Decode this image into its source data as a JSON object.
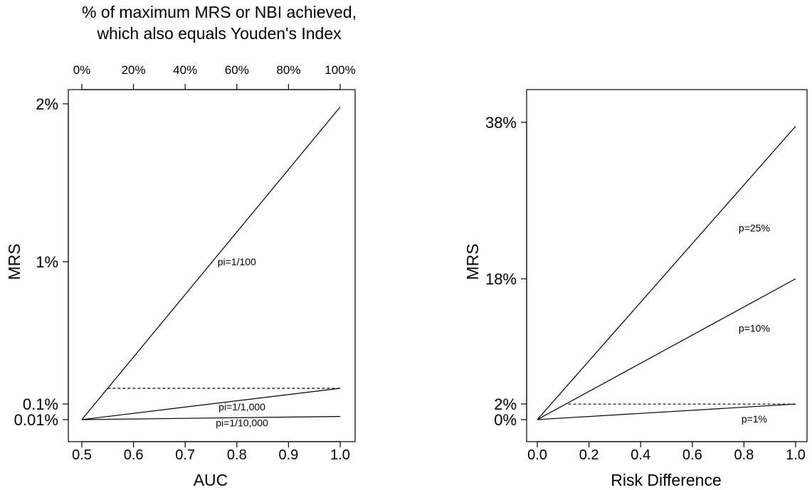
{
  "chart_data": [
    {
      "type": "line",
      "title": "% of maximum MRS or NBI achieved,\nwhich also equals Youden's Index",
      "title_lines": [
        "% of maximum MRS or NBI achieved,",
        "which also equals Youden's Index"
      ],
      "xlabel": "AUC",
      "ylabel": "MRS",
      "xlim": [
        0.5,
        1.0
      ],
      "ylim": [
        0,
        2
      ],
      "x_ticks": [
        0.5,
        0.6,
        0.7,
        0.8,
        0.9,
        1.0
      ],
      "x_tick_labels": [
        "0.5",
        "0.6",
        "0.7",
        "0.8",
        "0.9",
        "1.0"
      ],
      "y_ticks": [
        0.01,
        0.1,
        1,
        2
      ],
      "y_tick_labels": [
        "0.01%",
        "0.1%",
        "1%",
        "2%"
      ],
      "top_axis": {
        "ticks": [
          0.5,
          0.6,
          0.7,
          0.8,
          0.9,
          1.0
        ],
        "labels": [
          "0%",
          "20%",
          "40%",
          "60%",
          "80%",
          "100%"
        ]
      },
      "series": [
        {
          "name": "pi=1/100",
          "x": [
            0.5,
            1.0
          ],
          "y": [
            0,
            1.98
          ],
          "style": "solid",
          "label_at": [
            0.8,
            1.0
          ]
        },
        {
          "name": "pi=1/1,000",
          "x": [
            0.5,
            1.0
          ],
          "y": [
            0,
            0.198
          ],
          "style": "solid",
          "label_at": [
            0.81,
            0.08
          ]
        },
        {
          "name": "pi=1/10,000",
          "x": [
            0.5,
            1.0
          ],
          "y": [
            0,
            0.0198
          ],
          "style": "solid",
          "label_at": [
            0.81,
            -0.02
          ]
        },
        {
          "name": "",
          "x": [
            0.55,
            1.0
          ],
          "y": [
            0.198,
            0.198
          ],
          "style": "dashed"
        }
      ]
    },
    {
      "type": "line",
      "title": "",
      "xlabel": "Risk Difference",
      "ylabel": "MRS",
      "xlim": [
        0.0,
        1.0
      ],
      "ylim": [
        0,
        38
      ],
      "x_ticks": [
        0.0,
        0.2,
        0.4,
        0.6,
        0.8,
        1.0
      ],
      "x_tick_labels": [
        "0.0",
        "0.2",
        "0.4",
        "0.6",
        "0.8",
        "1.0"
      ],
      "y_ticks": [
        0,
        2,
        18,
        38
      ],
      "y_tick_labels": [
        "0%",
        "2%",
        "18%",
        "38%"
      ],
      "series": [
        {
          "name": "p=25%",
          "x": [
            0.0,
            1.0
          ],
          "y": [
            0,
            37.5
          ],
          "style": "solid",
          "label_at": [
            0.84,
            24.5
          ]
        },
        {
          "name": "p=10%",
          "x": [
            0.0,
            1.0
          ],
          "y": [
            0,
            18.0
          ],
          "style": "solid",
          "label_at": [
            0.84,
            11.7
          ]
        },
        {
          "name": "p=1%",
          "x": [
            0.0,
            1.0
          ],
          "y": [
            0,
            1.98
          ],
          "style": "solid",
          "label_at": [
            0.84,
            0.1
          ]
        },
        {
          "name": "",
          "x": [
            0.12,
            1.0
          ],
          "y": [
            1.98,
            1.98
          ],
          "style": "dashed"
        }
      ]
    }
  ]
}
